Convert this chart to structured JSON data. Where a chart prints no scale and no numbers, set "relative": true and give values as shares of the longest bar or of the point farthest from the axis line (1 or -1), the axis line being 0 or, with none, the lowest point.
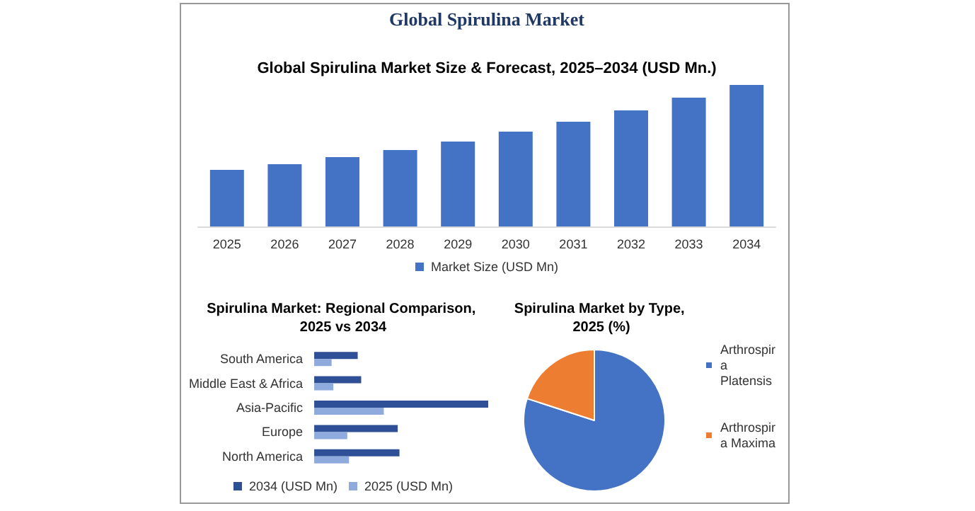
{
  "chart_data": [
    {
      "type": "bar",
      "title": "Global Spirulina Market",
      "subtitle": "Global Spirulina Market Size & Forecast, 2025–2034 (USD Mn.)",
      "relative": true,
      "categories": [
        "2025",
        "2026",
        "2027",
        "2028",
        "2029",
        "2030",
        "2031",
        "2032",
        "2033",
        "2034"
      ],
      "series": [
        {
          "name": "Market Size (USD Mn)",
          "color": "#4472c4",
          "values": [
            0.4,
            0.44,
            0.49,
            0.54,
            0.6,
            0.67,
            0.74,
            0.82,
            0.91,
            1
          ]
        }
      ],
      "legend": "bottom"
    },
    {
      "type": "bar",
      "orientation": "horizontal",
      "title": "Spirulina Market: Regional Comparison, 2025 vs 2034",
      "relative": true,
      "categories": [
        "South America",
        "Middle East & Africa",
        "Asia-Pacific",
        "Europe",
        "North America"
      ],
      "series": [
        {
          "name": "2034 (USD Mn)",
          "color": "#2f5096",
          "values": [
            0.25,
            0.27,
            1,
            0.48,
            0.49
          ]
        },
        {
          "name": "2025 (USD Mn)",
          "color": "#8faadc",
          "values": [
            0.1,
            0.11,
            0.4,
            0.19,
            0.2
          ]
        }
      ],
      "legend": "bottom"
    },
    {
      "type": "pie",
      "title": "Spirulina Market by Type, 2025 (%)",
      "categories": [
        "Arthrospira Platensis",
        "Arthrospira Maxima"
      ],
      "values": [
        80,
        20
      ],
      "colors": [
        "#4472c4",
        "#ed7d31"
      ],
      "legend": "right"
    }
  ]
}
